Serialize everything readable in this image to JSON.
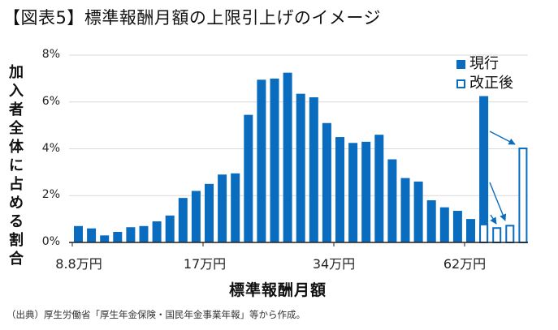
{
  "title": "【図表5】標準報酬月額の上限引上げのイメージ",
  "y_axis_label": [
    "加",
    "入",
    "者",
    "全",
    "体",
    "に",
    "占",
    "め",
    "る",
    "割",
    "合"
  ],
  "y_ticks": [
    "8%",
    "6%",
    "4%",
    "2%",
    "0%"
  ],
  "x_ticks": [
    "8.8万円",
    "17万円",
    "34万円",
    "62万円"
  ],
  "x_label": "標準報酬月額",
  "legend": {
    "current": "現行",
    "revised": "改正後"
  },
  "source": "（出典）厚生労働省「厚生年金保険・国民年金事業年報」等から作成。",
  "colors": {
    "bar": "#0a6cbf",
    "grid": "#d9d9d9",
    "axis": "#222222"
  },
  "chart_data": {
    "type": "bar",
    "title": "【図表5】標準報酬月額の上限引上げのイメージ",
    "xlabel": "標準報酬月額",
    "ylabel": "加入者全体に占める割合",
    "ylim": [
      0,
      8
    ],
    "y_ticks": [
      "0%",
      "2%",
      "4%",
      "6%",
      "8%"
    ],
    "x_tick_labels": {
      "8.8万円": 1,
      "17万円": 11,
      "34万円": 21,
      "62万円": 31
    },
    "grid": true,
    "legend_position": "top-right",
    "categories": [
      "1",
      "2",
      "3",
      "4",
      "5",
      "6",
      "7",
      "8",
      "9",
      "10",
      "11",
      "12",
      "13",
      "14",
      "15",
      "16",
      "17",
      "18",
      "19",
      "20",
      "21",
      "22",
      "23",
      "24",
      "25",
      "26",
      "27",
      "28",
      "29",
      "30",
      "31",
      "32",
      "33",
      "34",
      "35"
    ],
    "series": [
      {
        "name": "現行",
        "style": "filled",
        "values": [
          0.7,
          0.6,
          0.3,
          0.45,
          0.65,
          0.7,
          0.9,
          1.15,
          1.9,
          2.2,
          2.5,
          2.9,
          2.95,
          5.45,
          6.95,
          7.0,
          7.25,
          6.35,
          6.2,
          5.1,
          4.5,
          4.25,
          4.3,
          4.6,
          3.55,
          2.75,
          2.6,
          1.8,
          1.5,
          1.35,
          1.0,
          6.25,
          null,
          null,
          null
        ]
      },
      {
        "name": "改正後",
        "style": "outline",
        "values": [
          null,
          null,
          null,
          null,
          null,
          null,
          null,
          null,
          null,
          null,
          null,
          null,
          null,
          null,
          null,
          null,
          null,
          null,
          null,
          null,
          null,
          null,
          null,
          null,
          null,
          null,
          null,
          null,
          null,
          null,
          null,
          0.8,
          0.65,
          0.75,
          4.05
        ]
      }
    ],
    "annotations": [
      "arrows from 現行 top bar (6.25%) redistributing to new upper grades 33, 34, 35"
    ]
  }
}
